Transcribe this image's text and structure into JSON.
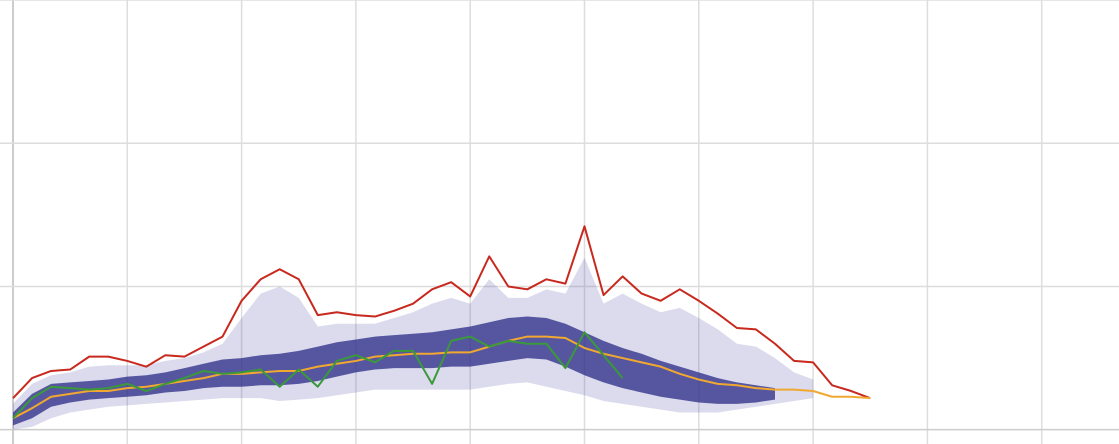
{
  "chart_data": {
    "type": "line",
    "xlim": [
      0,
      58
    ],
    "ylim": [
      -0.1,
      3
    ],
    "xticks": [
      0,
      6,
      12,
      18,
      24,
      30,
      36,
      42,
      48,
      54
    ],
    "yticks": [
      0,
      1,
      2,
      3
    ],
    "grid": true,
    "bands": [
      {
        "color": "#3a3a9a",
        "opacity": 0.18,
        "upper": [
          0.18,
          0.32,
          0.38,
          0.4,
          0.44,
          0.45,
          0.45,
          0.45,
          0.48,
          0.5,
          0.54,
          0.6,
          0.78,
          0.95,
          1.0,
          0.92,
          0.72,
          0.74,
          0.74,
          0.74,
          0.78,
          0.82,
          0.88,
          0.92,
          0.88,
          1.05,
          0.92,
          0.92,
          0.98,
          0.95,
          1.2,
          0.88,
          0.95,
          0.88,
          0.82,
          0.85,
          0.78,
          0.7,
          0.6,
          0.58,
          0.5,
          0.4,
          0.35
        ],
        "lower": [
          0.0,
          0.02,
          0.08,
          0.12,
          0.14,
          0.16,
          0.17,
          0.18,
          0.19,
          0.2,
          0.21,
          0.22,
          0.22,
          0.22,
          0.2,
          0.21,
          0.22,
          0.24,
          0.26,
          0.28,
          0.28,
          0.28,
          0.28,
          0.28,
          0.28,
          0.3,
          0.32,
          0.33,
          0.3,
          0.27,
          0.24,
          0.2,
          0.18,
          0.16,
          0.14,
          0.12,
          0.12,
          0.12,
          0.14,
          0.16,
          0.18,
          0.2,
          0.22
        ]
      },
      {
        "color": "#2a2a86",
        "opacity": 0.75,
        "upper": [
          0.12,
          0.25,
          0.32,
          0.33,
          0.34,
          0.35,
          0.37,
          0.38,
          0.4,
          0.43,
          0.46,
          0.49,
          0.5,
          0.52,
          0.53,
          0.55,
          0.58,
          0.61,
          0.63,
          0.65,
          0.66,
          0.67,
          0.68,
          0.7,
          0.72,
          0.75,
          0.78,
          0.79,
          0.78,
          0.74,
          0.68,
          0.62,
          0.57,
          0.53,
          0.48,
          0.44,
          0.4,
          0.36,
          0.33,
          0.31,
          0.29
        ],
        "lower": [
          0.03,
          0.08,
          0.16,
          0.19,
          0.21,
          0.22,
          0.23,
          0.24,
          0.26,
          0.27,
          0.29,
          0.3,
          0.3,
          0.31,
          0.31,
          0.32,
          0.34,
          0.37,
          0.4,
          0.42,
          0.43,
          0.43,
          0.43,
          0.44,
          0.44,
          0.46,
          0.48,
          0.5,
          0.49,
          0.44,
          0.38,
          0.33,
          0.29,
          0.26,
          0.23,
          0.21,
          0.19,
          0.18,
          0.18,
          0.19,
          0.21
        ]
      }
    ],
    "series": [
      {
        "color": "#c8291e",
        "values": [
          0.22,
          0.36,
          0.41,
          0.42,
          0.51,
          0.51,
          0.48,
          0.44,
          0.52,
          0.51,
          0.58,
          0.65,
          0.9,
          1.05,
          1.12,
          1.05,
          0.8,
          0.82,
          0.8,
          0.79,
          0.83,
          0.88,
          0.98,
          1.03,
          0.93,
          1.21,
          1.0,
          0.98,
          1.05,
          1.02,
          1.42,
          0.94,
          1.07,
          0.95,
          0.9,
          0.98,
          0.9,
          0.81,
          0.71,
          0.7,
          0.6,
          0.48,
          0.47,
          0.31,
          0.27,
          0.22
        ]
      },
      {
        "color": "#f0a830",
        "values": [
          0.08,
          0.15,
          0.23,
          0.25,
          0.27,
          0.27,
          0.29,
          0.3,
          0.32,
          0.34,
          0.36,
          0.39,
          0.39,
          0.4,
          0.41,
          0.41,
          0.44,
          0.46,
          0.48,
          0.51,
          0.52,
          0.53,
          0.53,
          0.54,
          0.54,
          0.58,
          0.62,
          0.65,
          0.65,
          0.64,
          0.57,
          0.53,
          0.5,
          0.47,
          0.44,
          0.39,
          0.35,
          0.32,
          0.31,
          0.29,
          0.28,
          0.28,
          0.27,
          0.23,
          0.23,
          0.22
        ]
      },
      {
        "color": "#3a9a3a",
        "values": [
          0.08,
          0.22,
          0.3,
          0.29,
          0.28,
          0.29,
          0.32,
          0.27,
          0.32,
          0.36,
          0.41,
          0.39,
          0.4,
          0.42,
          0.3,
          0.42,
          0.3,
          0.48,
          0.52,
          0.47,
          0.55,
          0.55,
          0.32,
          0.62,
          0.65,
          0.58,
          0.62,
          0.6,
          0.6,
          0.43,
          0.68,
          0.52,
          0.36
        ]
      }
    ]
  }
}
